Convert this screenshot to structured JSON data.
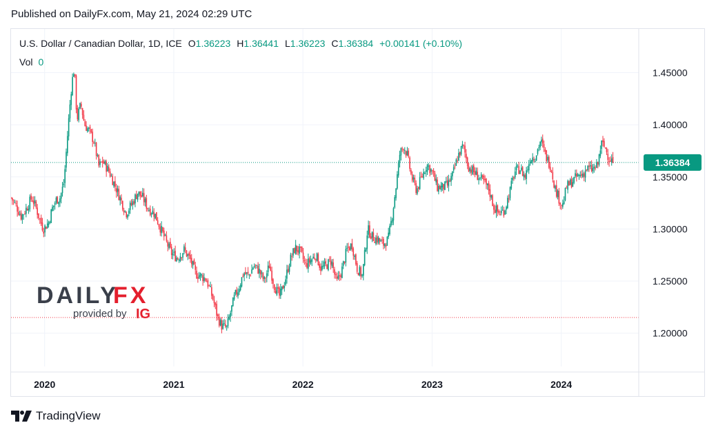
{
  "published": "Published on DailyFx.com, May 21, 2024 02:29 UTC",
  "legend": {
    "symbol": "U.S. Dollar / Canadian Dollar, 1D, ICE",
    "o_label": "O",
    "o_value": "1.36223",
    "h_label": "H",
    "h_value": "1.36441",
    "l_label": "L",
    "l_value": "1.36223",
    "c_label": "C",
    "c_value": "1.36384",
    "change": "+0.00141 (+0.10%)"
  },
  "volume": {
    "label": "Vol",
    "value": "0"
  },
  "watermark": {
    "brand_a": "DAILY",
    "brand_b": "FX",
    "provided_by": "provided by",
    "ig": "IG"
  },
  "footer_brand": "TradingView",
  "colors": {
    "up": "#089981",
    "down": "#f23645",
    "accent": "#089981",
    "support_line": "#f23645"
  },
  "chart_data": {
    "type": "candlestick",
    "title": "",
    "y_ticks": [
      "1.45000",
      "1.40000",
      "1.35000",
      "1.30000",
      "1.25000",
      "1.20000"
    ],
    "y_tick_values": [
      1.45,
      1.4,
      1.35,
      1.3,
      1.25,
      1.2
    ],
    "ylim": [
      1.168,
      1.492
    ],
    "x_ticks": [
      "2020",
      "2021",
      "2022",
      "2023",
      "2024"
    ],
    "x_tick_values": [
      2020.0,
      2021.0,
      2022.0,
      2023.0,
      2024.0
    ],
    "xlim": [
      2019.74,
      2024.6
    ],
    "last_price": 1.36384,
    "last_price_label": "1.36384",
    "horizontal_line": 1.215,
    "close_path": [
      [
        2019.74,
        1.33
      ],
      [
        2019.78,
        1.322
      ],
      [
        2019.82,
        1.312
      ],
      [
        2019.86,
        1.32
      ],
      [
        2019.9,
        1.33
      ],
      [
        2019.93,
        1.322
      ],
      [
        2019.96,
        1.31
      ],
      [
        2019.99,
        1.3
      ],
      [
        2020.03,
        1.306
      ],
      [
        2020.06,
        1.32
      ],
      [
        2020.09,
        1.328
      ],
      [
        2020.12,
        1.33
      ],
      [
        2020.15,
        1.345
      ],
      [
        2020.18,
        1.395
      ],
      [
        2020.21,
        1.44
      ],
      [
        2020.23,
        1.455
      ],
      [
        2020.25,
        1.405
      ],
      [
        2020.28,
        1.42
      ],
      [
        2020.31,
        1.4
      ],
      [
        2020.34,
        1.395
      ],
      [
        2020.38,
        1.385
      ],
      [
        2020.42,
        1.36
      ],
      [
        2020.45,
        1.365
      ],
      [
        2020.5,
        1.355
      ],
      [
        2020.55,
        1.34
      ],
      [
        2020.59,
        1.328
      ],
      [
        2020.63,
        1.315
      ],
      [
        2020.68,
        1.325
      ],
      [
        2020.72,
        1.335
      ],
      [
        2020.76,
        1.33
      ],
      [
        2020.8,
        1.32
      ],
      [
        2020.85,
        1.315
      ],
      [
        2020.9,
        1.3
      ],
      [
        2020.94,
        1.288
      ],
      [
        2020.98,
        1.277
      ],
      [
        2021.03,
        1.272
      ],
      [
        2021.08,
        1.28
      ],
      [
        2021.13,
        1.27
      ],
      [
        2021.17,
        1.257
      ],
      [
        2021.21,
        1.255
      ],
      [
        2021.25,
        1.252
      ],
      [
        2021.28,
        1.242
      ],
      [
        2021.31,
        1.23
      ],
      [
        2021.34,
        1.215
      ],
      [
        2021.37,
        1.207
      ],
      [
        2021.41,
        1.205
      ],
      [
        2021.44,
        1.22
      ],
      [
        2021.47,
        1.235
      ],
      [
        2021.5,
        1.242
      ],
      [
        2021.54,
        1.258
      ],
      [
        2021.58,
        1.255
      ],
      [
        2021.62,
        1.265
      ],
      [
        2021.66,
        1.26
      ],
      [
        2021.7,
        1.25
      ],
      [
        2021.74,
        1.265
      ],
      [
        2021.78,
        1.245
      ],
      [
        2021.82,
        1.235
      ],
      [
        2021.86,
        1.25
      ],
      [
        2021.9,
        1.27
      ],
      [
        2021.94,
        1.282
      ],
      [
        2021.98,
        1.278
      ],
      [
        2022.02,
        1.265
      ],
      [
        2022.06,
        1.27
      ],
      [
        2022.1,
        1.275
      ],
      [
        2022.14,
        1.262
      ],
      [
        2022.18,
        1.265
      ],
      [
        2022.22,
        1.27
      ],
      [
        2022.26,
        1.248
      ],
      [
        2022.3,
        1.26
      ],
      [
        2022.34,
        1.28
      ],
      [
        2022.38,
        1.285
      ],
      [
        2022.42,
        1.262
      ],
      [
        2022.46,
        1.255
      ],
      [
        2022.5,
        1.3
      ],
      [
        2022.54,
        1.292
      ],
      [
        2022.58,
        1.29
      ],
      [
        2022.62,
        1.285
      ],
      [
        2022.66,
        1.29
      ],
      [
        2022.69,
        1.312
      ],
      [
        2022.72,
        1.34
      ],
      [
        2022.75,
        1.372
      ],
      [
        2022.78,
        1.38
      ],
      [
        2022.81,
        1.37
      ],
      [
        2022.84,
        1.35
      ],
      [
        2022.88,
        1.337
      ],
      [
        2022.92,
        1.35
      ],
      [
        2022.96,
        1.362
      ],
      [
        2023.0,
        1.355
      ],
      [
        2023.04,
        1.34
      ],
      [
        2023.08,
        1.34
      ],
      [
        2023.12,
        1.342
      ],
      [
        2023.16,
        1.352
      ],
      [
        2023.2,
        1.37
      ],
      [
        2023.24,
        1.38
      ],
      [
        2023.28,
        1.36
      ],
      [
        2023.32,
        1.355
      ],
      [
        2023.36,
        1.35
      ],
      [
        2023.4,
        1.345
      ],
      [
        2023.44,
        1.338
      ],
      [
        2023.48,
        1.32
      ],
      [
        2023.52,
        1.315
      ],
      [
        2023.56,
        1.318
      ],
      [
        2023.6,
        1.335
      ],
      [
        2023.64,
        1.355
      ],
      [
        2023.68,
        1.358
      ],
      [
        2023.72,
        1.35
      ],
      [
        2023.76,
        1.368
      ],
      [
        2023.8,
        1.37
      ],
      [
        2023.84,
        1.385
      ],
      [
        2023.88,
        1.37
      ],
      [
        2023.92,
        1.36
      ],
      [
        2023.95,
        1.34
      ],
      [
        2023.98,
        1.33
      ],
      [
        2024.01,
        1.322
      ],
      [
        2024.04,
        1.34
      ],
      [
        2024.08,
        1.345
      ],
      [
        2024.12,
        1.35
      ],
      [
        2024.16,
        1.352
      ],
      [
        2024.2,
        1.358
      ],
      [
        2024.24,
        1.357
      ],
      [
        2024.28,
        1.36
      ],
      [
        2024.31,
        1.382
      ],
      [
        2024.34,
        1.378
      ],
      [
        2024.37,
        1.368
      ],
      [
        2024.39,
        1.366
      ],
      [
        2024.4,
        1.364
      ]
    ]
  }
}
